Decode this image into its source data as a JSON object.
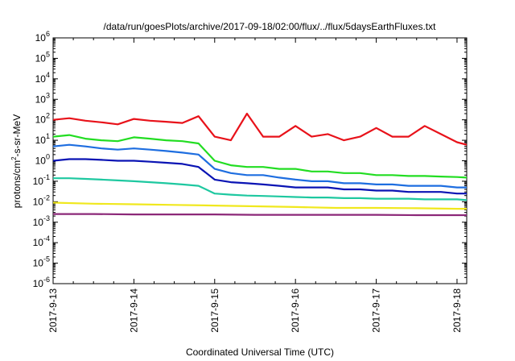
{
  "chart_data": {
    "type": "line",
    "title": "/data/run/goesPlots/archive/2017-09-18/02:00/flux/../flux/5daysEarthFluxes.txt",
    "xlabel": "Coordinated Universal Time (UTC)",
    "ylabel": {
      "base": "protons/cm",
      "sup": "2",
      "rest": "-s-sr-MeV"
    },
    "log_y": true,
    "grid": false,
    "legend": "none",
    "xlim": [
      0,
      5.12
    ],
    "x_ticks": [
      {
        "x": 0,
        "label": "2017-9-13"
      },
      {
        "x": 1,
        "label": "2017-9-14"
      },
      {
        "x": 2,
        "label": "2017-9-15"
      },
      {
        "x": 3,
        "label": "2017-9-16"
      },
      {
        "x": 4,
        "label": "2017-9-17"
      },
      {
        "x": 5,
        "label": "2017-9-18"
      }
    ],
    "ylim_exp": [
      -6,
      6
    ],
    "y_ticks": [
      {
        "exp": 6,
        "label": "10",
        "sup": "6"
      },
      {
        "exp": 5,
        "label": "10",
        "sup": "5"
      },
      {
        "exp": 4,
        "label": "10",
        "sup": "4"
      },
      {
        "exp": 3,
        "label": "10",
        "sup": "3"
      },
      {
        "exp": 2,
        "label": "10",
        "sup": "2"
      },
      {
        "exp": 1,
        "label": "10",
        "sup": "1"
      },
      {
        "exp": 0,
        "label": "10",
        "sup": "0"
      },
      {
        "exp": -1,
        "label": "10",
        "sup": "-1"
      },
      {
        "exp": -2,
        "label": "10",
        "sup": "-2"
      },
      {
        "exp": -3,
        "label": "10",
        "sup": "-3"
      },
      {
        "exp": -4,
        "label": "10",
        "sup": "-4"
      },
      {
        "exp": -5,
        "label": "10",
        "sup": "-5"
      },
      {
        "exp": -6,
        "label": "10",
        "sup": "-6"
      }
    ],
    "series": [
      {
        "color": "#e8121a",
        "x": [
          0,
          0.2,
          0.4,
          0.6,
          0.8,
          1.0,
          1.2,
          1.4,
          1.6,
          1.8,
          2.0,
          2.2,
          2.4,
          2.6,
          2.8,
          3.0,
          3.2,
          3.4,
          3.6,
          3.8,
          4.0,
          4.2,
          4.4,
          4.6,
          4.8,
          5.0,
          5.12
        ],
        "y": [
          100,
          120,
          90,
          75,
          60,
          110,
          90,
          80,
          70,
          150,
          15,
          10,
          200,
          15,
          15,
          50,
          15,
          20,
          10,
          15,
          40,
          15,
          15,
          50,
          20,
          8,
          6
        ]
      },
      {
        "color": "#22dd22",
        "x": [
          0,
          0.2,
          0.4,
          0.6,
          0.8,
          1.0,
          1.2,
          1.4,
          1.6,
          1.8,
          2.0,
          2.2,
          2.4,
          2.6,
          2.8,
          3.0,
          3.2,
          3.4,
          3.6,
          3.8,
          4.0,
          4.2,
          4.4,
          4.6,
          4.8,
          5.0,
          5.12
        ],
        "y": [
          15,
          18,
          12,
          10,
          9,
          14,
          12,
          10,
          9,
          7,
          1.0,
          0.6,
          0.5,
          0.5,
          0.4,
          0.4,
          0.3,
          0.3,
          0.25,
          0.25,
          0.2,
          0.2,
          0.18,
          0.18,
          0.17,
          0.16,
          0.15
        ]
      },
      {
        "color": "#1e6ee0",
        "x": [
          0,
          0.2,
          0.4,
          0.6,
          0.8,
          1.0,
          1.2,
          1.4,
          1.6,
          1.8,
          2.0,
          2.2,
          2.4,
          2.6,
          2.8,
          3.0,
          3.2,
          3.4,
          3.6,
          3.8,
          4.0,
          4.2,
          4.4,
          4.6,
          4.8,
          5.0,
          5.12
        ],
        "y": [
          5,
          6,
          5,
          4,
          3.5,
          4,
          3.5,
          3,
          2.5,
          2,
          0.4,
          0.25,
          0.2,
          0.2,
          0.15,
          0.12,
          0.1,
          0.1,
          0.08,
          0.08,
          0.07,
          0.07,
          0.06,
          0.06,
          0.06,
          0.05,
          0.05
        ]
      },
      {
        "color": "#0a14b4",
        "x": [
          0,
          0.2,
          0.4,
          0.6,
          0.8,
          1.0,
          1.2,
          1.4,
          1.6,
          1.8,
          2.0,
          2.2,
          2.4,
          2.6,
          2.8,
          3.0,
          3.2,
          3.4,
          3.6,
          3.8,
          4.0,
          4.2,
          4.4,
          4.6,
          4.8,
          5.0,
          5.12
        ],
        "y": [
          1.0,
          1.2,
          1.2,
          1.1,
          1.0,
          1.0,
          0.9,
          0.8,
          0.7,
          0.5,
          0.12,
          0.09,
          0.08,
          0.07,
          0.06,
          0.05,
          0.05,
          0.05,
          0.04,
          0.04,
          0.035,
          0.035,
          0.03,
          0.03,
          0.03,
          0.025,
          0.025
        ]
      },
      {
        "color": "#1ec8a0",
        "x": [
          0,
          0.2,
          0.4,
          0.6,
          0.8,
          1.0,
          1.2,
          1.4,
          1.6,
          1.8,
          2.0,
          2.2,
          2.4,
          2.6,
          2.8,
          3.0,
          3.2,
          3.4,
          3.6,
          3.8,
          4.0,
          4.2,
          4.4,
          4.6,
          4.8,
          5.0,
          5.12
        ],
        "y": [
          0.14,
          0.14,
          0.13,
          0.12,
          0.11,
          0.1,
          0.09,
          0.08,
          0.07,
          0.06,
          0.025,
          0.022,
          0.02,
          0.019,
          0.018,
          0.017,
          0.016,
          0.016,
          0.015,
          0.015,
          0.014,
          0.014,
          0.014,
          0.013,
          0.013,
          0.013,
          0.012
        ]
      },
      {
        "color": "#f0e81e",
        "x": [
          0,
          0.5,
          1.0,
          1.5,
          2.0,
          2.5,
          3.0,
          3.5,
          4.0,
          4.5,
          5.0,
          5.12
        ],
        "y": [
          0.009,
          0.008,
          0.0075,
          0.007,
          0.0065,
          0.006,
          0.0055,
          0.005,
          0.005,
          0.0048,
          0.0045,
          0.0045
        ]
      },
      {
        "color": "#8c2878",
        "x": [
          0,
          0.5,
          1.0,
          1.5,
          2.0,
          2.5,
          3.0,
          3.5,
          4.0,
          4.5,
          5.0,
          5.12
        ],
        "y": [
          0.0025,
          0.0025,
          0.0024,
          0.0024,
          0.0024,
          0.0023,
          0.0023,
          0.0023,
          0.0023,
          0.0022,
          0.0022,
          0.0022
        ]
      }
    ]
  }
}
